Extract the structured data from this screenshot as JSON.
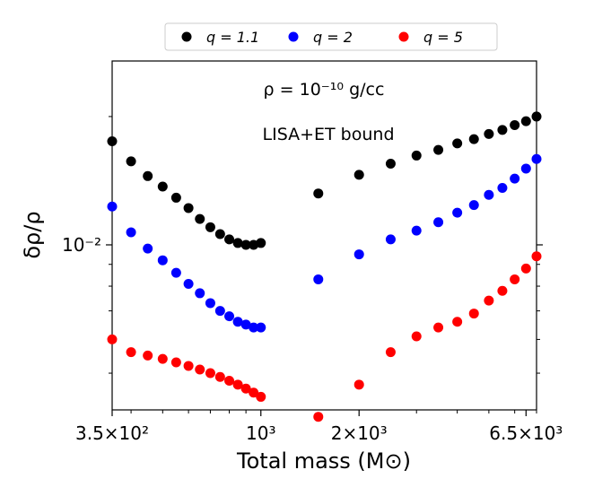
{
  "chart_data": {
    "type": "scatter",
    "title": "",
    "xlabel": "Total mass (M⊙)",
    "ylabel": "δρ/ρ",
    "xscale": "log",
    "yscale": "log",
    "xlim": [
      350,
      7000
    ],
    "ylim": [
      0.0041,
      0.027
    ],
    "grid": false,
    "legend_position": "top-center",
    "x_tick_labels": [
      {
        "value": 350,
        "label": "3.5×10²"
      },
      {
        "value": 1000,
        "label": "10³"
      },
      {
        "value": 2000,
        "label": "2×10³"
      },
      {
        "value": 6500,
        "label": "6.5×10³"
      }
    ],
    "y_tick_labels": [
      {
        "value": 0.01,
        "label": "10⁻²"
      }
    ],
    "annotations": {
      "density": "ρ = 10⁻¹⁰ g/cc",
      "bound": "LISA+ET bound"
    },
    "series": [
      {
        "name": "q = 1.1",
        "color": "#000000",
        "x": [
          350,
          400,
          450,
          500,
          550,
          600,
          650,
          700,
          750,
          800,
          850,
          900,
          950,
          1000,
          1500,
          2000,
          2500,
          3000,
          3500,
          4000,
          4500,
          5000,
          5500,
          6000,
          6500,
          7000
        ],
        "y": [
          0.0175,
          0.0157,
          0.0145,
          0.0137,
          0.0129,
          0.0122,
          0.0115,
          0.011,
          0.0106,
          0.0103,
          0.0101,
          0.01,
          0.01,
          0.0101,
          0.0132,
          0.0146,
          0.0155,
          0.0162,
          0.0167,
          0.0173,
          0.0177,
          0.0182,
          0.0186,
          0.0191,
          0.0195,
          0.02
        ]
      },
      {
        "name": "q = 2",
        "color": "#0000ff",
        "x": [
          350,
          400,
          450,
          500,
          550,
          600,
          650,
          700,
          750,
          800,
          850,
          900,
          950,
          1000,
          1500,
          2000,
          2500,
          3000,
          3500,
          4000,
          4500,
          5000,
          5500,
          6000,
          6500,
          7000
        ],
        "y": [
          0.0123,
          0.0107,
          0.0098,
          0.0092,
          0.0086,
          0.0081,
          0.0077,
          0.0073,
          0.007,
          0.0068,
          0.0066,
          0.0065,
          0.0064,
          0.0064,
          0.0083,
          0.0095,
          0.0103,
          0.0108,
          0.0113,
          0.0119,
          0.0124,
          0.0131,
          0.0136,
          0.0143,
          0.0151,
          0.0159
        ]
      },
      {
        "name": "q = 5",
        "color": "#ff0000",
        "x": [
          350,
          400,
          450,
          500,
          550,
          600,
          650,
          700,
          750,
          800,
          850,
          900,
          950,
          1000,
          1500,
          2000,
          2500,
          3000,
          3500,
          4000,
          4500,
          5000,
          5500,
          6000,
          6500,
          7000
        ],
        "y": [
          0.006,
          0.0056,
          0.0055,
          0.0054,
          0.0053,
          0.0052,
          0.0051,
          0.005,
          0.0049,
          0.0048,
          0.0047,
          0.0046,
          0.0045,
          0.0044,
          0.00395,
          0.0047,
          0.0056,
          0.0061,
          0.0064,
          0.0066,
          0.0069,
          0.0074,
          0.0078,
          0.0083,
          0.0088,
          0.0094
        ]
      }
    ]
  }
}
